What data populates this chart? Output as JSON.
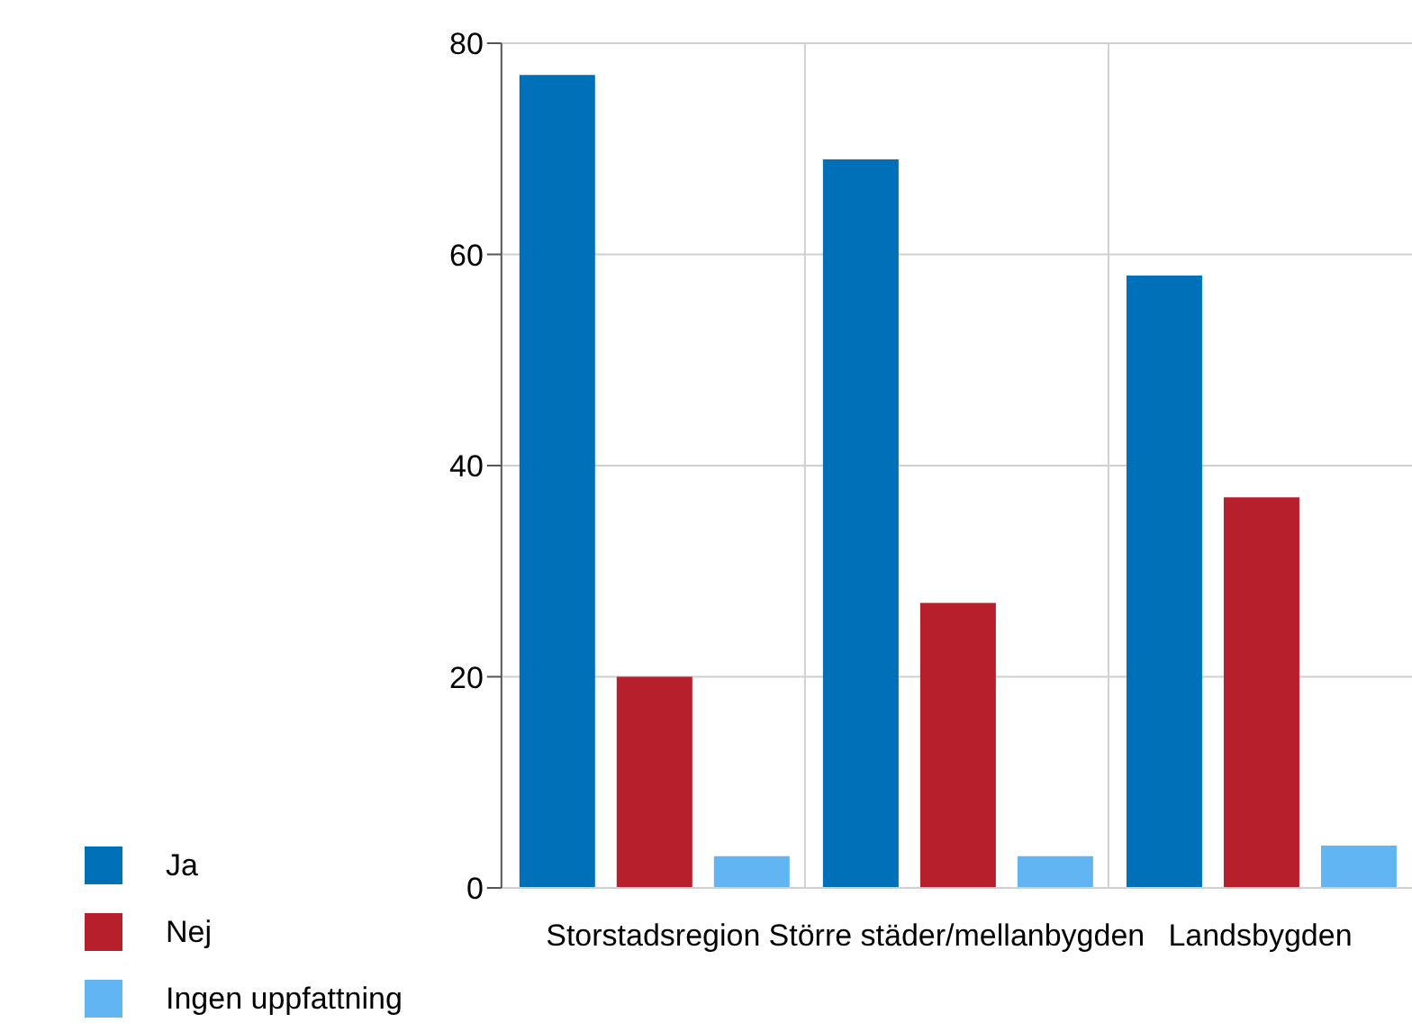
{
  "chart_data": {
    "type": "bar",
    "categories": [
      "Storstadsregion",
      "Större städer/mellanbygden",
      "Landsbygden"
    ],
    "series": [
      {
        "name": "Ja",
        "color": "#0070b8",
        "values": [
          77,
          69,
          58
        ]
      },
      {
        "name": "Nej",
        "color": "#b81f2c",
        "values": [
          20,
          27,
          37
        ]
      },
      {
        "name": "Ingen uppfattning",
        "color": "#62b5f3",
        "values": [
          3,
          3,
          4
        ]
      }
    ],
    "ylim": [
      0,
      80
    ],
    "yticks": [
      0,
      20,
      40,
      60,
      80
    ],
    "grid": true,
    "legend": "bottom left"
  }
}
